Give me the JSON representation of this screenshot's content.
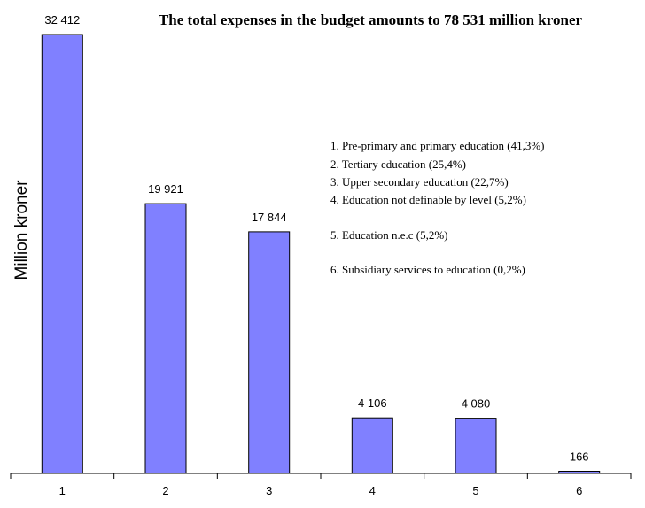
{
  "chart_data": {
    "type": "bar",
    "title": "The total expenses in the budget amounts to 78 531 million kroner",
    "ylabel": "Million kroner",
    "xlabel": "",
    "categories": [
      "1",
      "2",
      "3",
      "4",
      "5",
      "6"
    ],
    "values": [
      32412,
      19921,
      17844,
      4106,
      4080,
      166
    ],
    "value_labels": [
      "32 412",
      "19 921",
      "17 844",
      "4 106",
      "4 080",
      "166"
    ],
    "ylim": [
      0,
      32412
    ],
    "grid": false,
    "bar_color": "#8080ff",
    "legend": {
      "placement": "top-right",
      "entries": [
        "1. Pre-primary and primary education (41,3%)",
        "2. Tertiary education (25,4%)",
        "3. Upper secondary education (22,7%)",
        "4. Education not definable by level (5,2%)",
        "5. Education n.e.c (5,2%)",
        "6. Subsidiary services to education (0,2%)"
      ]
    }
  }
}
